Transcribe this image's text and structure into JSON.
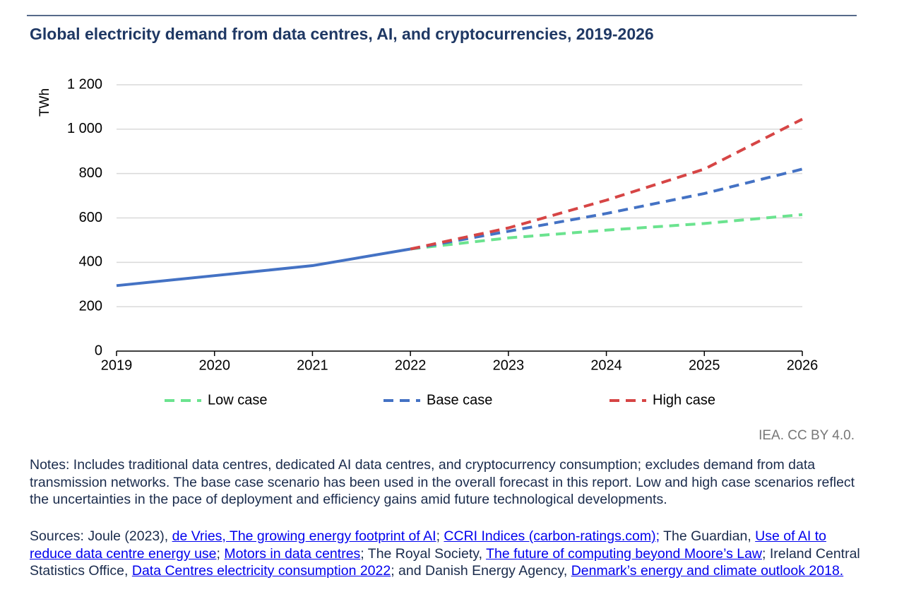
{
  "chart_data": {
    "type": "line",
    "title": "Global electricity demand from data centres, AI, and cryptocurrencies, 2019-2026",
    "y_label": "TWh",
    "x": [
      2019,
      2020,
      2021,
      2022,
      2023,
      2024,
      2025,
      2026
    ],
    "xlim": [
      2019,
      2026
    ],
    "xticks": [
      2019,
      2020,
      2021,
      2022,
      2023,
      2024,
      2025,
      2026
    ],
    "ylim": [
      0,
      1200
    ],
    "yticks": [
      0,
      200,
      400,
      600,
      800,
      {
        "value": 1000,
        "label": "1 000"
      },
      {
        "value": 1200,
        "label": "1 200"
      }
    ],
    "grid": true,
    "legend": "bottom",
    "series": [
      {
        "color": "#4472c4",
        "dashed": false,
        "values": [
          295,
          340,
          385,
          460,
          null,
          null,
          null,
          null
        ]
      },
      {
        "name": "Low case",
        "color": "#6be38f",
        "dashed": true,
        "values": [
          null,
          null,
          null,
          460,
          510,
          545,
          575,
          615
        ]
      },
      {
        "name": "Base case",
        "color": "#4472c4",
        "dashed": true,
        "values": [
          null,
          null,
          null,
          460,
          540,
          620,
          710,
          820
        ]
      },
      {
        "name": "High case",
        "color": "#d64545",
        "dashed": true,
        "values": [
          null,
          null,
          null,
          460,
          555,
          680,
          820,
          1045
        ]
      }
    ]
  },
  "credit": "IEA. CC BY 4.0.",
  "notes": "Notes: Includes traditional data centres, dedicated AI data centres, and cryptocurrency consumption; excludes demand from data transmission networks. The base case scenario has been used in the overall forecast in this report. Low and high case scenarios reflect the uncertainties in the pace of deployment and efficiency gains amid future technological developments.",
  "sources": [
    {
      "text": "Sources: Joule (2023), ",
      "link": false
    },
    {
      "text": "de Vries, The growing energy footprint of AI",
      "link": true
    },
    {
      "text": "; ",
      "link": false
    },
    {
      "text": "CCRI Indices (carbon-ratings.com);",
      "link": true
    },
    {
      "text": " The Guardian, ",
      "link": false
    },
    {
      "text": "Use of AI to reduce data centre energy use",
      "link": true
    },
    {
      "text": "; ",
      "link": false
    },
    {
      "text": "Motors in data centres",
      "link": true
    },
    {
      "text": "; The Royal Society, ",
      "link": false
    },
    {
      "text": "The future of computing beyond Moore’s Law",
      "link": true
    },
    {
      "text": "; Ireland Central Statistics Office, ",
      "link": false
    },
    {
      "text": "Data Centres electricity consumption 2022",
      "link": true
    },
    {
      "text": "; and Danish Energy Agency, ",
      "link": false
    },
    {
      "text": "Denmark’s energy and climate outlook 2018.",
      "link": true
    }
  ]
}
